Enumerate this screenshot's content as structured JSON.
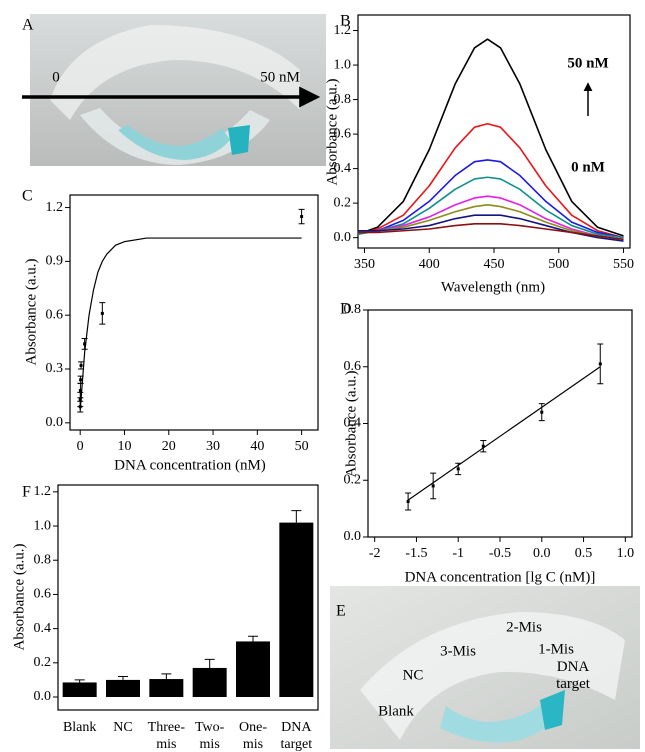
{
  "photos": [
    {
      "label": "A",
      "texts": [
        "0",
        "50 nM"
      ]
    },
    {
      "label": "E",
      "texts": [
        "Blank",
        "NC",
        "3-Mis",
        "2-Mis",
        "1-Mis",
        "DNA target"
      ]
    }
  ],
  "chart_data": [
    {
      "type": "line",
      "panel": "B",
      "xlabel": "Wavelength (nm)",
      "ylabel": "Absorbance (a.u.)",
      "annotations": [
        "50 nM",
        "0 nM"
      ],
      "xlim": [
        345,
        555
      ],
      "ylim": [
        -0.06,
        1.29
      ],
      "xticks": [
        350,
        400,
        450,
        500,
        550
      ],
      "yticks": [
        {
          "value": 0,
          "label": "0.0"
        },
        0.2,
        0.4,
        0.6,
        0.8,
        {
          "value": 1,
          "label": "1.0"
        },
        1.2
      ],
      "x": [
        345,
        360,
        380,
        400,
        420,
        435,
        445,
        455,
        470,
        490,
        510,
        530,
        550
      ],
      "series": [
        {
          "color": "#000000",
          "values": [
            0.02,
            0.06,
            0.21,
            0.51,
            0.89,
            1.1,
            1.15,
            1.1,
            0.89,
            0.51,
            0.21,
            0.06,
            0.01
          ]
        },
        {
          "color": "#e8161a",
          "values": [
            0.02,
            0.05,
            0.13,
            0.3,
            0.52,
            0.64,
            0.66,
            0.64,
            0.52,
            0.3,
            0.13,
            0.04,
            0.0
          ]
        },
        {
          "color": "#1a1ae6",
          "values": [
            0.02,
            0.04,
            0.1,
            0.21,
            0.36,
            0.44,
            0.45,
            0.44,
            0.36,
            0.21,
            0.09,
            0.03,
            0.0
          ]
        },
        {
          "color": "#0f8f8f",
          "values": [
            0.02,
            0.04,
            0.08,
            0.17,
            0.28,
            0.34,
            0.35,
            0.34,
            0.28,
            0.16,
            0.07,
            0.02,
            0.0
          ]
        },
        {
          "color": "#e51ee5",
          "values": [
            0.03,
            0.04,
            0.07,
            0.12,
            0.19,
            0.23,
            0.24,
            0.23,
            0.19,
            0.11,
            0.05,
            0.01,
            -0.01
          ]
        },
        {
          "color": "#8c8c1a",
          "values": [
            0.03,
            0.04,
            0.06,
            0.1,
            0.15,
            0.18,
            0.19,
            0.18,
            0.15,
            0.09,
            0.04,
            0.01,
            -0.01
          ]
        },
        {
          "color": "#141480",
          "values": [
            0.04,
            0.04,
            0.05,
            0.07,
            0.11,
            0.13,
            0.13,
            0.13,
            0.11,
            0.07,
            0.03,
            0.0,
            -0.02
          ]
        },
        {
          "color": "#8b1010",
          "values": [
            0.03,
            0.03,
            0.04,
            0.05,
            0.07,
            0.08,
            0.08,
            0.08,
            0.07,
            0.05,
            0.03,
            0.01,
            -0.01
          ]
        }
      ]
    },
    {
      "type": "scatter",
      "panel": "C",
      "xlabel": "DNA concentration  (nM)",
      "ylabel": "Absorbance (a.u.)",
      "xlim": [
        -2.3,
        53.7
      ],
      "ylim": [
        -0.04,
        1.27
      ],
      "xticks": [
        0,
        10,
        20,
        30,
        40,
        50
      ],
      "yticks": [
        {
          "value": 0,
          "label": "0.0"
        },
        0.3,
        0.6,
        0.9,
        1.2
      ],
      "points": {
        "x": [
          0.01,
          0.025,
          0.05,
          0.1,
          0.2,
          1,
          5,
          50
        ],
        "values": [
          0.09,
          0.13,
          0.18,
          0.24,
          0.32,
          0.44,
          0.61,
          1.15
        ],
        "errors": [
          0.03,
          0.04,
          0.04,
          0.02,
          0.02,
          0.03,
          0.06,
          0.04
        ]
      },
      "fit": {
        "x": [
          0,
          1,
          2,
          3,
          4,
          5,
          6,
          8,
          10,
          15,
          50
        ],
        "values": [
          0.07,
          0.39,
          0.6,
          0.74,
          0.84,
          0.9,
          0.94,
          0.99,
          1.01,
          1.03,
          1.03
        ]
      },
      "color": "#000000"
    },
    {
      "type": "scatter",
      "panel": "D",
      "xlabel": "DNA concentration [lg C (nM)]",
      "ylabel": "Absorbance (a.u.)",
      "xlim": [
        -2.08,
        1.08
      ],
      "ylim": [
        0,
        0.8
      ],
      "xticks": [
        -2,
        -1.5,
        -1,
        -0.5,
        {
          "value": 0,
          "label": "0.0"
        },
        0.5,
        {
          "value": 1,
          "label": "1.0"
        }
      ],
      "yticks": [
        {
          "value": 0,
          "label": "0.0"
        },
        0.2,
        0.4,
        0.6,
        0.8
      ],
      "points": {
        "x": [
          -1.6,
          -1.3,
          -1,
          -0.7,
          0,
          0.7
        ],
        "values": [
          0.125,
          0.18,
          0.24,
          0.32,
          0.44,
          0.61
        ],
        "errors": [
          0.03,
          0.045,
          0.02,
          0.02,
          0.03,
          0.07
        ]
      },
      "fit": {
        "x": [
          -1.6,
          0.7
        ],
        "values": [
          0.13,
          0.6
        ]
      },
      "color": "#000000"
    },
    {
      "type": "bar",
      "panel": "F",
      "ylabel": "Absorbance (a.u.)",
      "ylim": [
        -0.076,
        1.24
      ],
      "yticks": [
        {
          "value": 0,
          "label": "0.0"
        },
        0.2,
        0.4,
        0.6,
        0.8,
        {
          "value": 1,
          "label": "1.0"
        },
        1.2
      ],
      "categories": [
        "Blank",
        "NC",
        "Three-mis",
        "Two-mis",
        "One-mis",
        "DNA target"
      ],
      "values": [
        0.085,
        0.1,
        0.105,
        0.17,
        0.325,
        1.02
      ],
      "errors": [
        0.015,
        0.02,
        0.03,
        0.05,
        0.03,
        0.07
      ],
      "color": "#000000"
    }
  ]
}
